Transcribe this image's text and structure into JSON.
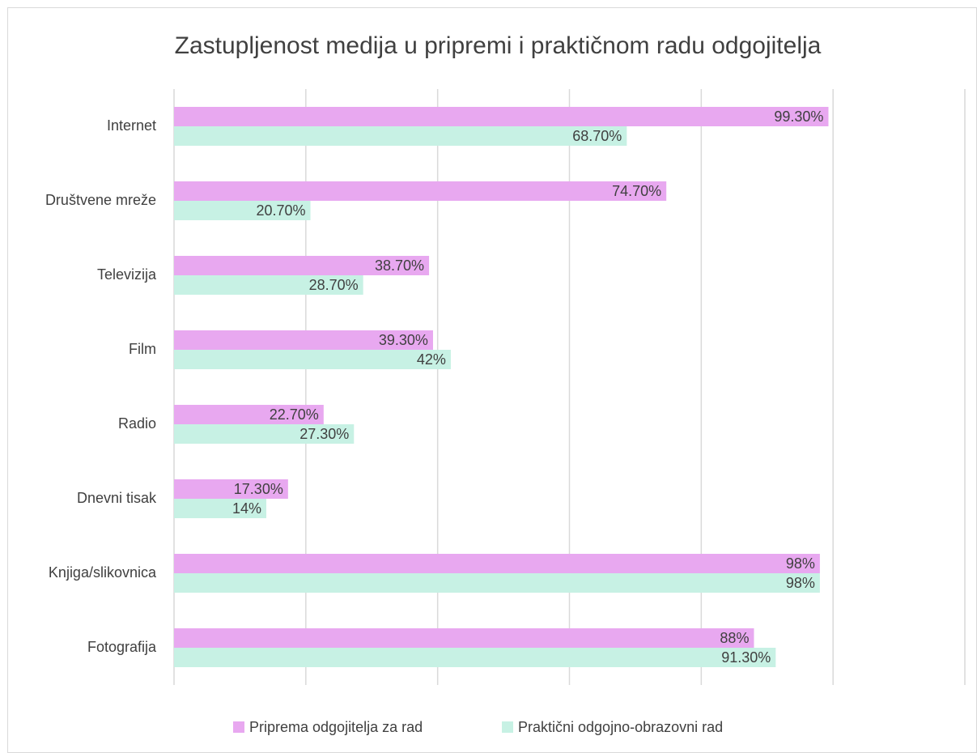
{
  "chart_data": {
    "type": "barh",
    "title": "Zastupljenost medija u pripremi i praktičnom radu odgojitelja",
    "categories": [
      "Internet",
      "Društvene mreže",
      "Televizija",
      "Film",
      "Radio",
      "Dnevni tisak",
      "Knjiga/slikovnica",
      "Fotografija"
    ],
    "series": [
      {
        "name": "Priprema odgojitelja za rad",
        "color": "#e8a8f0",
        "values": [
          99.3,
          74.7,
          38.7,
          39.3,
          22.7,
          17.3,
          98,
          88
        ],
        "value_labels": [
          "99.30%",
          "74.70%",
          "38.70%",
          "39.30%",
          "22.70%",
          "17.30%",
          "98%",
          "88%"
        ]
      },
      {
        "name": "Praktični odgojno-obrazovni rad",
        "color": "#c7f1e4",
        "values": [
          68.7,
          20.7,
          28.7,
          42,
          27.3,
          14,
          98,
          91.3
        ],
        "value_labels": [
          "68.70%",
          "20.70%",
          "28.70%",
          "42%",
          "27.30%",
          "14%",
          "98%",
          "91.30%"
        ]
      }
    ],
    "xlim": [
      0,
      120
    ],
    "xticks": [
      0,
      20,
      40,
      60,
      80,
      100,
      120
    ],
    "grid": true,
    "legend": "bottom"
  }
}
